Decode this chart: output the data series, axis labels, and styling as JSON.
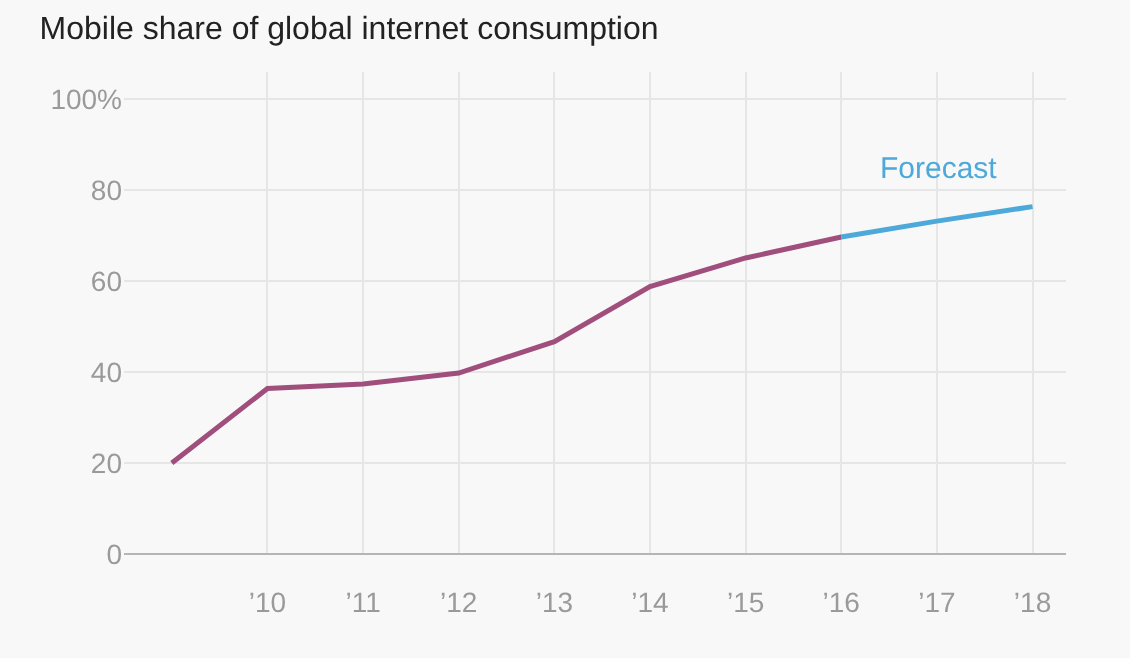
{
  "chart_data": {
    "type": "line",
    "title": "Mobile share of global internet consumption",
    "series": [
      {
        "color": "#a04f7d",
        "x": [
          2009,
          2010,
          2011,
          2012,
          2013,
          2014,
          2015,
          2016
        ],
        "values": [
          20,
          36.4,
          37.4,
          39.8,
          46.7,
          58.8,
          65.1,
          69.7
        ]
      },
      {
        "color": "#4da9d9",
        "x": [
          2016,
          2017,
          2018
        ],
        "values": [
          69.7,
          73.2,
          76.4
        ]
      }
    ],
    "annotations": [
      "Forecast"
    ],
    "xlim": [
      2008.5,
      2018.35
    ],
    "xticks": [
      {
        "value": 2010,
        "label": "’10"
      },
      {
        "value": 2011,
        "label": "’11"
      },
      {
        "value": 2012,
        "label": "’12"
      },
      {
        "value": 2013,
        "label": "’13"
      },
      {
        "value": 2014,
        "label": "’14"
      },
      {
        "value": 2015,
        "label": "’15"
      },
      {
        "value": 2016,
        "label": "’16"
      },
      {
        "value": 2017,
        "label": "’17"
      },
      {
        "value": 2018,
        "label": "’18"
      }
    ],
    "ylim": [
      0,
      106
    ],
    "yticks": [
      0,
      20,
      40,
      60,
      80,
      {
        "value": 100,
        "label": "100%"
      }
    ],
    "grid": true
  }
}
